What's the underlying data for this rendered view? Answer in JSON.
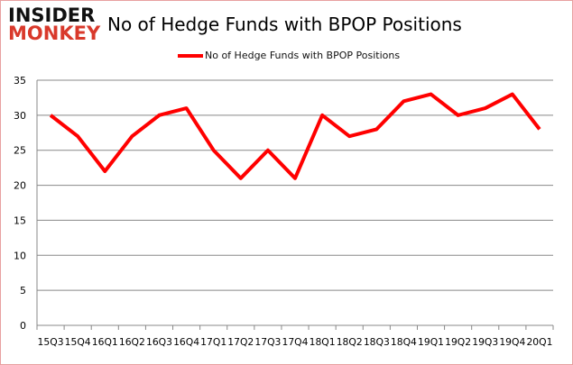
{
  "logo": {
    "line1": "INSIDER",
    "line2": "MONKEY"
  },
  "chart_data": {
    "type": "line",
    "title": "No of Hedge Funds with BPOP Positions",
    "categories": [
      "15Q3",
      "15Q4",
      "16Q1",
      "16Q2",
      "16Q3",
      "16Q4",
      "17Q1",
      "17Q2",
      "17Q3",
      "17Q4",
      "18Q1",
      "18Q2",
      "18Q3",
      "18Q4",
      "19Q1",
      "19Q2",
      "19Q3",
      "19Q4",
      "20Q1"
    ],
    "series": [
      {
        "name": "No of Hedge Funds with BPOP Positions",
        "values": [
          30,
          27,
          22,
          27,
          30,
          31,
          25,
          21,
          25,
          21,
          30,
          27,
          28,
          32,
          33,
          30,
          31,
          33,
          28
        ],
        "color": "#ff0000"
      }
    ],
    "ylim": [
      0,
      35
    ],
    "yticks": [
      0,
      5,
      10,
      15,
      20,
      25,
      30,
      35
    ],
    "grid": true,
    "legend": "top"
  }
}
